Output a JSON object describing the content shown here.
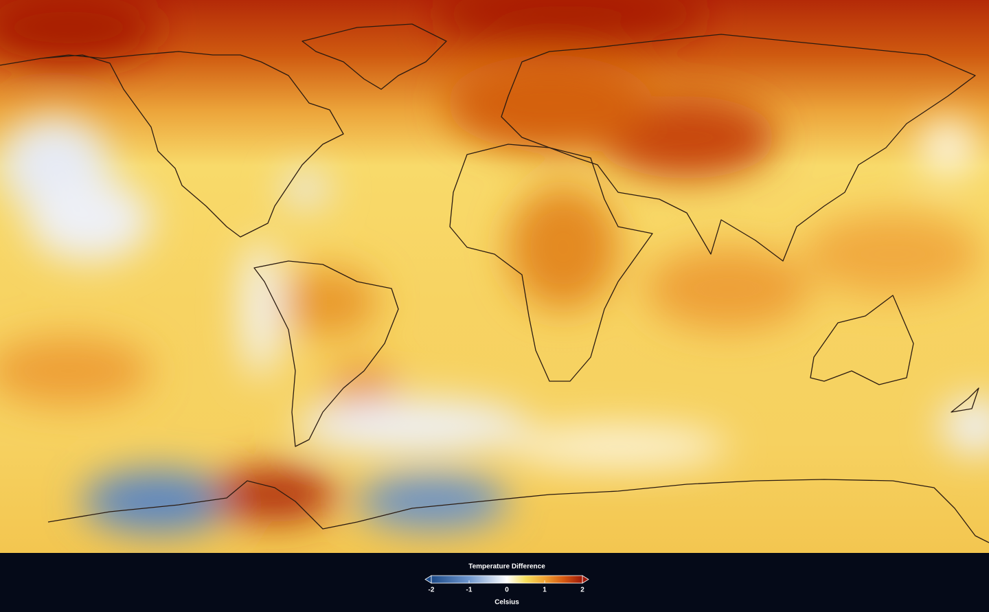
{
  "legend": {
    "title": "Temperature Difference",
    "label": "Celsius",
    "range": [
      -2,
      2
    ],
    "ticks": [
      -2,
      -1,
      0,
      1,
      2
    ],
    "colors": [
      {
        "value": -2,
        "color": "#1c4a88"
      },
      {
        "value": -1,
        "color": "#6f97cf"
      },
      {
        "value": 0,
        "color": "#ffffff"
      },
      {
        "value": 0.5,
        "color": "#f6df5c"
      },
      {
        "value": 1,
        "color": "#f0a232"
      },
      {
        "value": 1.5,
        "color": "#d65a12"
      },
      {
        "value": 2,
        "color": "#9e1808"
      }
    ]
  }
}
